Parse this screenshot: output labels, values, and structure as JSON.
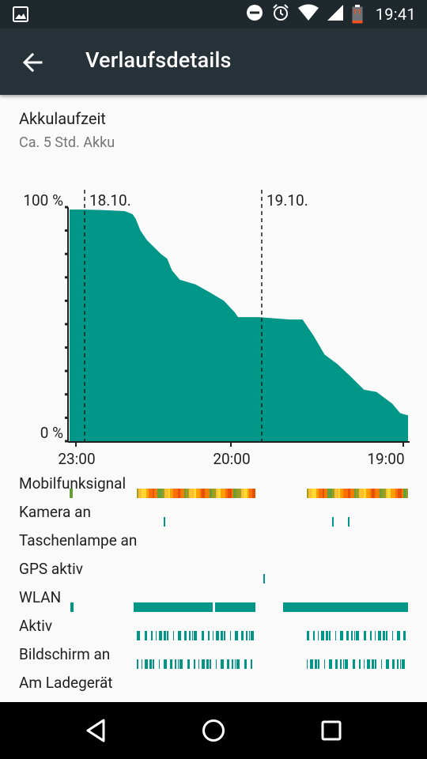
{
  "status_bar": {
    "time": "19:41",
    "battery_level": "11",
    "icons": [
      "gallery-icon",
      "do-not-disturb-icon",
      "alarm-icon",
      "wifi-icon",
      "signal-icon",
      "battery-icon"
    ]
  },
  "app_bar": {
    "title": "Verlaufsdetails",
    "back_icon": "arrow-back-icon"
  },
  "battery_section": {
    "title": "Akkulaufzeit",
    "subtitle": "Ca. 5 Std. Akku"
  },
  "chart_data": {
    "type": "area",
    "ylabels": [
      "100 %",
      "0 %"
    ],
    "ylim": [
      0,
      100
    ],
    "xlabels": [
      "23:00",
      "20:00",
      "19:00"
    ],
    "date_markers": [
      "18.10.",
      "19.10."
    ],
    "fill_color": "#009688",
    "series": [
      {
        "values": [
          [
            0,
            99
          ],
          [
            8,
            99
          ],
          [
            20,
            98.8
          ],
          [
            35,
            98.3
          ],
          [
            40,
            97
          ],
          [
            42,
            95
          ],
          [
            45,
            90
          ],
          [
            49,
            86
          ],
          [
            52,
            84
          ],
          [
            58,
            80
          ],
          [
            62,
            78
          ],
          [
            65,
            73
          ],
          [
            70,
            69
          ],
          [
            75,
            68
          ],
          [
            80,
            67
          ],
          [
            88,
            64
          ],
          [
            98,
            60
          ],
          [
            105,
            55
          ],
          [
            107,
            53
          ],
          [
            120,
            53
          ],
          [
            140,
            52
          ],
          [
            148,
            52
          ],
          [
            155,
            45
          ],
          [
            162,
            37
          ],
          [
            170,
            33
          ],
          [
            178,
            28
          ],
          [
            187,
            22
          ],
          [
            195,
            21
          ],
          [
            205,
            16
          ],
          [
            210,
            12
          ],
          [
            215,
            11
          ]
        ]
      }
    ],
    "x_range": [
      0,
      215
    ]
  },
  "history_rows": [
    {
      "label": "Mobilfunksignal",
      "type": "signal"
    },
    {
      "label": "Kamera an",
      "type": "ticks"
    },
    {
      "label": "Taschenlampe an",
      "type": "none"
    },
    {
      "label": "GPS aktiv",
      "type": "ticks"
    },
    {
      "label": "WLAN",
      "type": "bars"
    },
    {
      "label": "Aktiv",
      "type": "barcode"
    },
    {
      "label": "Bildschirm an",
      "type": "barcode"
    },
    {
      "label": "Am Ladegerät",
      "type": "none"
    }
  ],
  "nav_bar": {
    "back": "nav-back-icon",
    "home": "nav-home-icon",
    "recents": "nav-recents-icon"
  }
}
